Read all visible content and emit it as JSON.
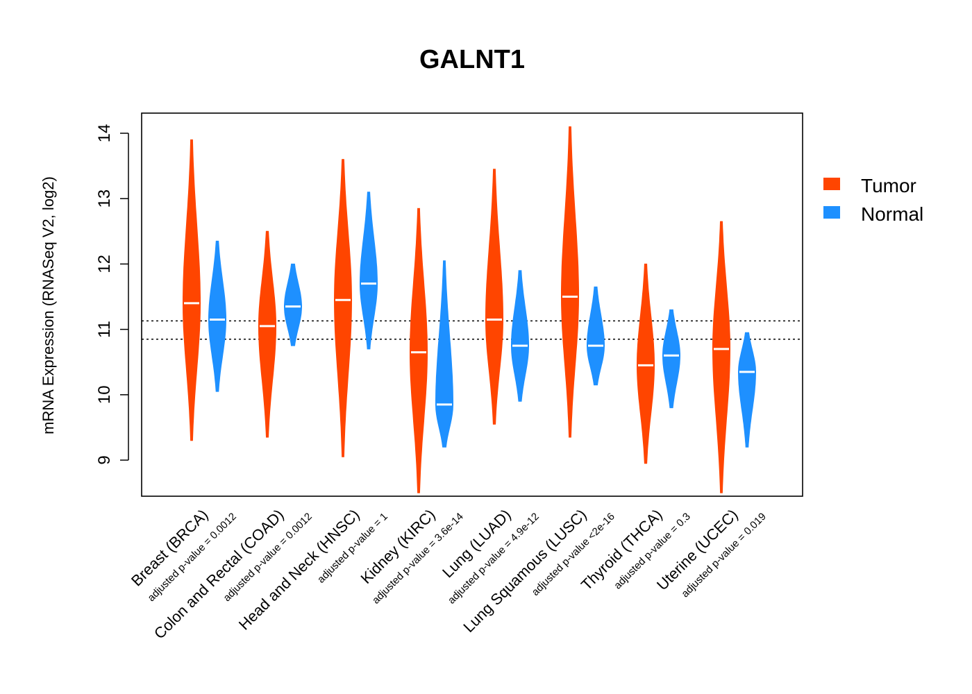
{
  "chart_data": {
    "type": "violin",
    "title": "GALNT1",
    "ylabel": "mRNA Expression (RNASeq V2, log2)",
    "ylim": [
      8.45,
      14.3
    ],
    "yticks": [
      9,
      10,
      11,
      12,
      13,
      14
    ],
    "reference_lines": [
      10.85,
      11.13
    ],
    "colors": {
      "Tumor": "#FF4500",
      "Normal": "#1E90FF"
    },
    "legend": {
      "position": "right",
      "entries": [
        "Tumor",
        "Normal"
      ]
    },
    "categories": [
      {
        "name": "Breast (BRCA)",
        "pvalue": "adjusted p-value = 0.0012",
        "tumor": {
          "median": 11.4,
          "min": 9.3,
          "max": 13.9
        },
        "normal": {
          "median": 11.15,
          "min": 10.05,
          "max": 12.35
        }
      },
      {
        "name": "Colon and Rectal (COAD)",
        "pvalue": "adjusted p-value = 0.0012",
        "tumor": {
          "median": 11.05,
          "min": 9.35,
          "max": 12.5
        },
        "normal": {
          "median": 11.35,
          "min": 10.75,
          "max": 12.0
        }
      },
      {
        "name": "Head and Neck (HNSC)",
        "pvalue": "adjusted p-value = 1",
        "tumor": {
          "median": 11.45,
          "min": 9.05,
          "max": 13.6
        },
        "normal": {
          "median": 11.7,
          "min": 10.7,
          "max": 13.1
        }
      },
      {
        "name": "Kidney (KIRC)",
        "pvalue": "adjusted p-value = 3.6e-14",
        "tumor": {
          "median": 10.65,
          "min": 8.5,
          "max": 12.85
        },
        "normal": {
          "median": 9.85,
          "min": 9.2,
          "max": 12.05
        }
      },
      {
        "name": "Lung (LUAD)",
        "pvalue": "adjusted p-value = 4.9e-12",
        "tumor": {
          "median": 11.15,
          "min": 9.55,
          "max": 13.45
        },
        "normal": {
          "median": 10.75,
          "min": 9.9,
          "max": 11.9
        }
      },
      {
        "name": "Lung Squamous (LUSC)",
        "pvalue": "adjusted p-value <2e-16",
        "tumor": {
          "median": 11.5,
          "min": 9.35,
          "max": 14.1
        },
        "normal": {
          "median": 10.75,
          "min": 10.15,
          "max": 11.65
        }
      },
      {
        "name": "Thyroid (THCA)",
        "pvalue": "adjusted p-value = 0.3",
        "tumor": {
          "median": 10.45,
          "min": 8.95,
          "max": 12.0
        },
        "normal": {
          "median": 10.6,
          "min": 9.8,
          "max": 11.3
        }
      },
      {
        "name": "Uterine (UCEC)",
        "pvalue": "adjusted p-value = 0.019",
        "tumor": {
          "median": 10.7,
          "min": 8.5,
          "max": 12.65
        },
        "normal": {
          "median": 10.35,
          "min": 9.2,
          "max": 10.95
        }
      }
    ]
  }
}
